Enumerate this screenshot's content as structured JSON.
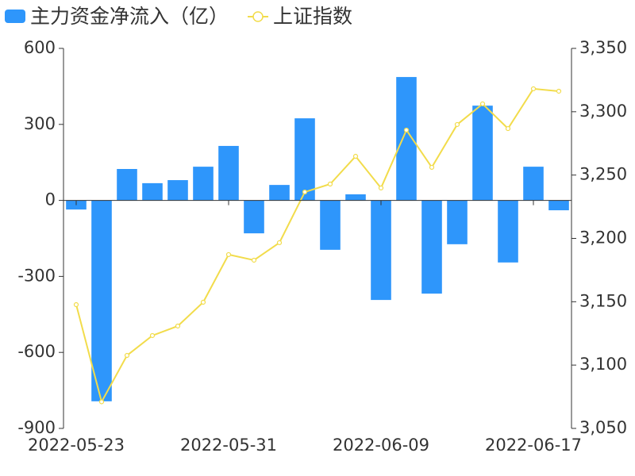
{
  "chart_data": {
    "type": "bar-line",
    "categories": [
      "2022-05-23",
      null,
      null,
      null,
      null,
      null,
      "2022-05-31",
      null,
      null,
      null,
      null,
      null,
      "2022-06-09",
      null,
      null,
      null,
      null,
      null,
      "2022-06-17",
      null
    ],
    "series": [
      {
        "name": "主力资金净流入（亿）",
        "color": "#2e96fb",
        "type": "bar",
        "values": [
          -36,
          -793,
          124,
          68,
          80,
          133,
          215,
          -130,
          61,
          324,
          -195,
          24,
          -393,
          487,
          -368,
          -173,
          374,
          -245,
          133,
          -39
        ]
      },
      {
        "name": "上证指数",
        "color": "#f2dc4b",
        "type": "line",
        "axis": "y2",
        "values": [
          3147.7,
          3071,
          3107.6,
          3123.3,
          3130.8,
          3149.6,
          3187.2,
          3182.8,
          3196.6,
          3236.6,
          3242.9,
          3264.8,
          3239.8,
          3285.5,
          3256.1,
          3289.9,
          3306.2,
          3286.7,
          3318.1,
          3316.2
        ]
      }
    ],
    "ylim": [
      -900,
      600
    ],
    "yticks": [
      -900,
      -600,
      -300,
      0,
      300,
      600
    ],
    "y2lim": [
      3050,
      3350
    ],
    "y2ticks": [
      {
        "value": 3050,
        "label": "3,050"
      },
      {
        "value": 3100,
        "label": "3,100"
      },
      {
        "value": 3150,
        "label": "3,150"
      },
      {
        "value": 3200,
        "label": "3,200"
      },
      {
        "value": 3250,
        "label": "3,250"
      },
      {
        "value": 3300,
        "label": "3,300"
      },
      {
        "value": 3350,
        "label": "3,350"
      }
    ]
  }
}
